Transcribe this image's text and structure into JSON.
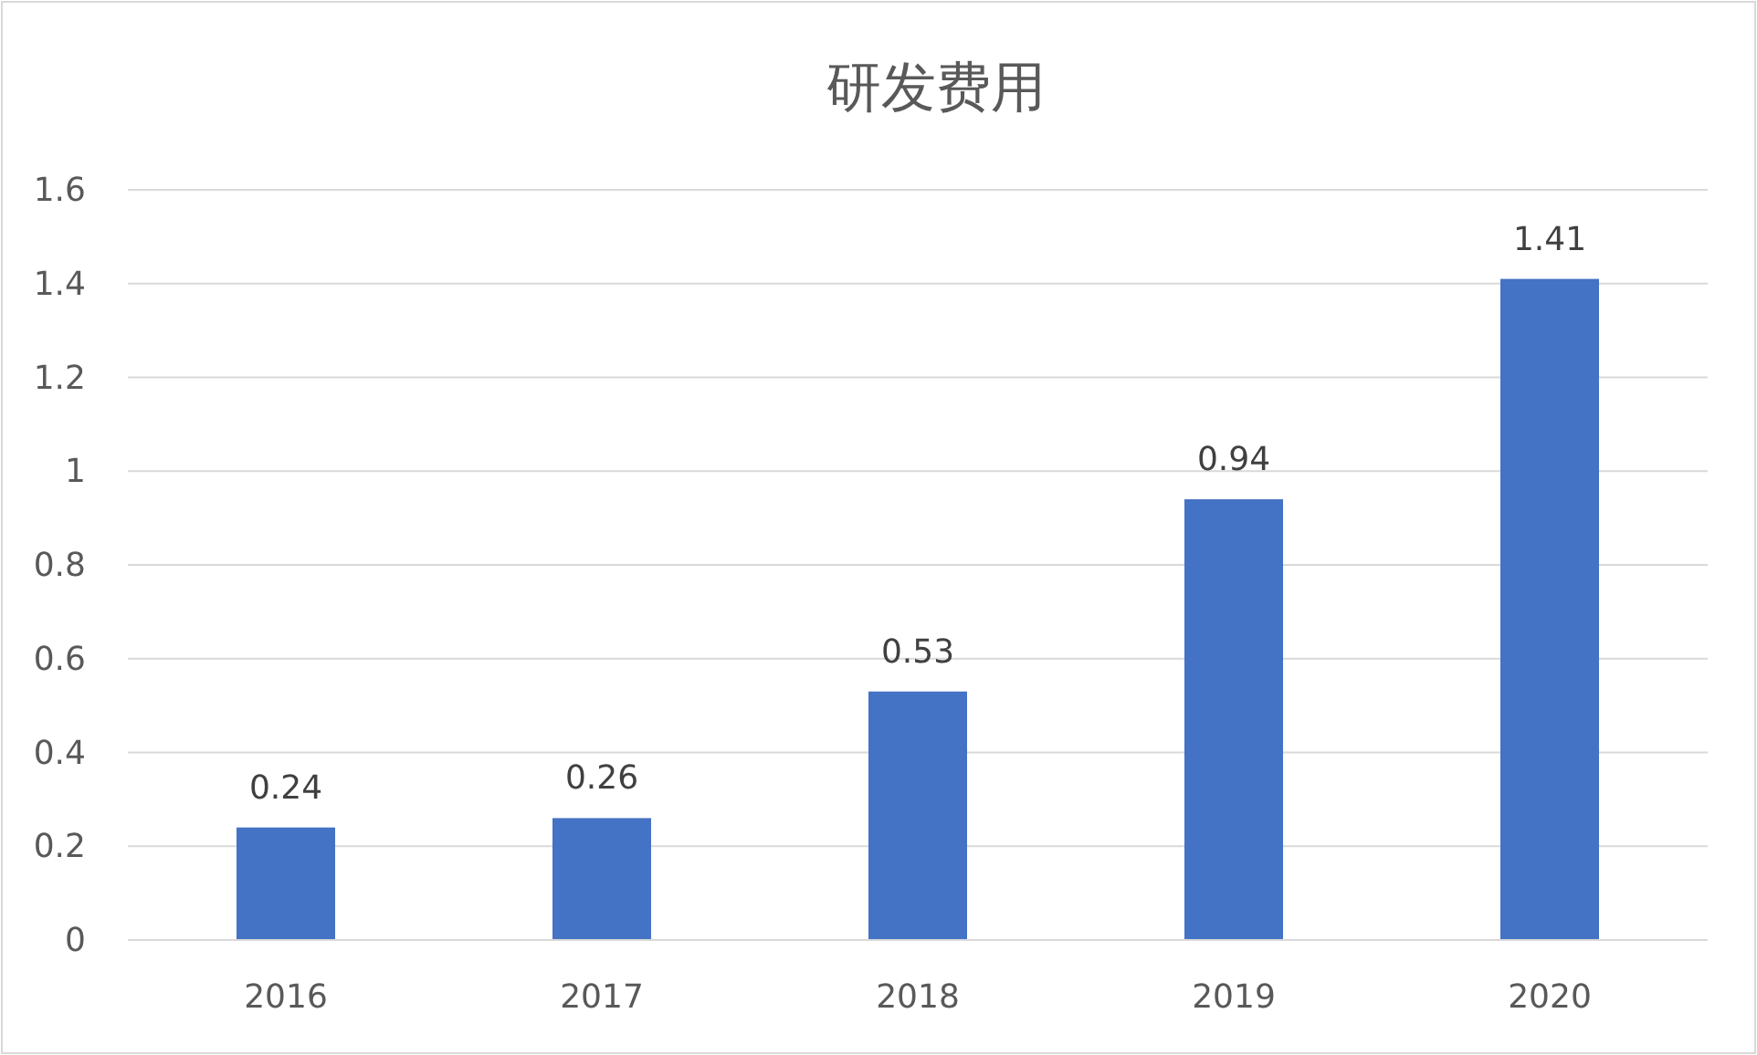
{
  "chart_data": {
    "type": "bar",
    "title": "研发费用",
    "categories": [
      "2016",
      "2017",
      "2018",
      "2019",
      "2020"
    ],
    "values": [
      0.24,
      0.26,
      0.53,
      0.94,
      1.41
    ],
    "color": "#4472c4",
    "ylim": [
      0,
      1.6
    ],
    "yticks": [
      0,
      0.2,
      0.4,
      0.6,
      0.8,
      1,
      1.2,
      1.4,
      1.6
    ],
    "grid": "y",
    "data_labels": true
  }
}
